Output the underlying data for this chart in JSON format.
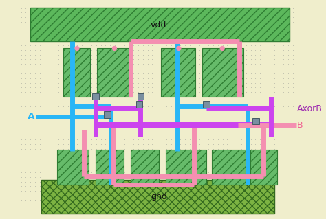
{
  "bg_outer": "#f0eecc",
  "vdd_green": "#5cb85c",
  "gnd_green": "#7cb342",
  "pmos_green": "#66bb6a",
  "nmos_green": "#66bb6a",
  "cyan": "#29b6f6",
  "pink": "#f48fb1",
  "magenta": "#cc44ee",
  "node_gray": "#7a8fa0",
  "dot_color": "#bbbbaa",
  "vdd_text": "vdd",
  "gnd_text": "gnd",
  "a_text": "A",
  "b_text": "B",
  "out_text": "AxorB",
  "a_color": "#29b6f6",
  "b_color": "#f06292",
  "out_color": "#9c27b0"
}
